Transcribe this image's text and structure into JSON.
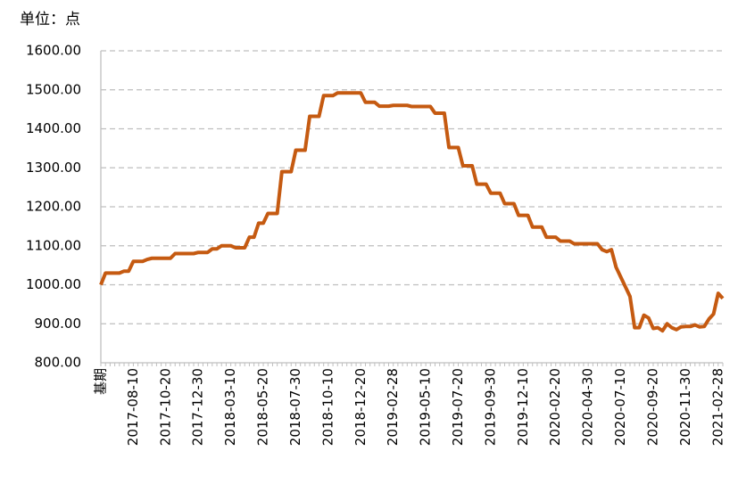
{
  "chart_data": {
    "type": "line",
    "ylabel": "单位：点",
    "categories": [
      "基期",
      null,
      null,
      null,
      null,
      null,
      null,
      "2017-08-10",
      null,
      null,
      null,
      null,
      null,
      null,
      "2017-10-20",
      null,
      null,
      null,
      null,
      null,
      null,
      "2017-12-30",
      null,
      null,
      null,
      null,
      null,
      null,
      "2018-03-10",
      null,
      null,
      null,
      null,
      null,
      null,
      "2018-05-20",
      null,
      null,
      null,
      null,
      null,
      null,
      "2018-07-30",
      null,
      null,
      null,
      null,
      null,
      null,
      "2018-10-10",
      null,
      null,
      null,
      null,
      null,
      null,
      "2018-12-20",
      null,
      null,
      null,
      null,
      null,
      null,
      "2019-02-28",
      null,
      null,
      null,
      null,
      null,
      null,
      "2019-05-10",
      null,
      null,
      null,
      null,
      null,
      null,
      "2019-07-20",
      null,
      null,
      null,
      null,
      null,
      null,
      "2019-09-30",
      null,
      null,
      null,
      null,
      null,
      null,
      "2019-12-10",
      null,
      null,
      null,
      null,
      null,
      null,
      "2020-02-20",
      null,
      null,
      null,
      null,
      null,
      null,
      "2020-04-30",
      null,
      null,
      null,
      null,
      null,
      null,
      "2020-07-10",
      null,
      null,
      null,
      null,
      null,
      null,
      "2020-09-20",
      null,
      null,
      null,
      null,
      null,
      null,
      "2020-11-30",
      null,
      null,
      null,
      null,
      null,
      null,
      "2021-02-28",
      null
    ],
    "values": [
      1000,
      1030,
      1030,
      1030,
      1030,
      1035,
      1035,
      1060,
      1060,
      1060,
      1065,
      1068,
      1068,
      1068,
      1068,
      1068,
      1080,
      1080,
      1080,
      1080,
      1080,
      1083,
      1083,
      1083,
      1092,
      1092,
      1100,
      1100,
      1100,
      1095,
      1095,
      1095,
      1122,
      1122,
      1158,
      1158,
      1183,
      1183,
      1183,
      1290,
      1290,
      1290,
      1345,
      1345,
      1345,
      1432,
      1432,
      1432,
      1485,
      1485,
      1485,
      1492,
      1492,
      1492,
      1492,
      1492,
      1492,
      1468,
      1468,
      1468,
      1458,
      1458,
      1458,
      1460,
      1460,
      1460,
      1460,
      1457,
      1457,
      1457,
      1457,
      1457,
      1440,
      1440,
      1440,
      1352,
      1352,
      1352,
      1305,
      1305,
      1305,
      1258,
      1258,
      1258,
      1235,
      1235,
      1235,
      1208,
      1208,
      1208,
      1178,
      1178,
      1178,
      1148,
      1148,
      1148,
      1122,
      1122,
      1122,
      1112,
      1112,
      1112,
      1105,
      1105,
      1105,
      1105,
      1105,
      1105,
      1090,
      1085,
      1090,
      1045,
      1020,
      995,
      970,
      890,
      890,
      922,
      915,
      888,
      890,
      882,
      900,
      890,
      885,
      892,
      893,
      893,
      897,
      892,
      893,
      912,
      925,
      978,
      965
    ],
    "color": "#c55a11",
    "ylim": [
      800,
      1600
    ],
    "yticks": [
      {
        "value": 800,
        "label": "800.00"
      },
      {
        "value": 900,
        "label": "900.00"
      },
      {
        "value": 1000,
        "label": "1000.00"
      },
      {
        "value": 1100,
        "label": "1100.00"
      },
      {
        "value": 1200,
        "label": "1200.00"
      },
      {
        "value": 1300,
        "label": "1300.00"
      },
      {
        "value": 1400,
        "label": "1400.00"
      },
      {
        "value": 1500,
        "label": "1500.00"
      },
      {
        "value": 1600,
        "label": "1600.00"
      }
    ],
    "grid": true
  }
}
